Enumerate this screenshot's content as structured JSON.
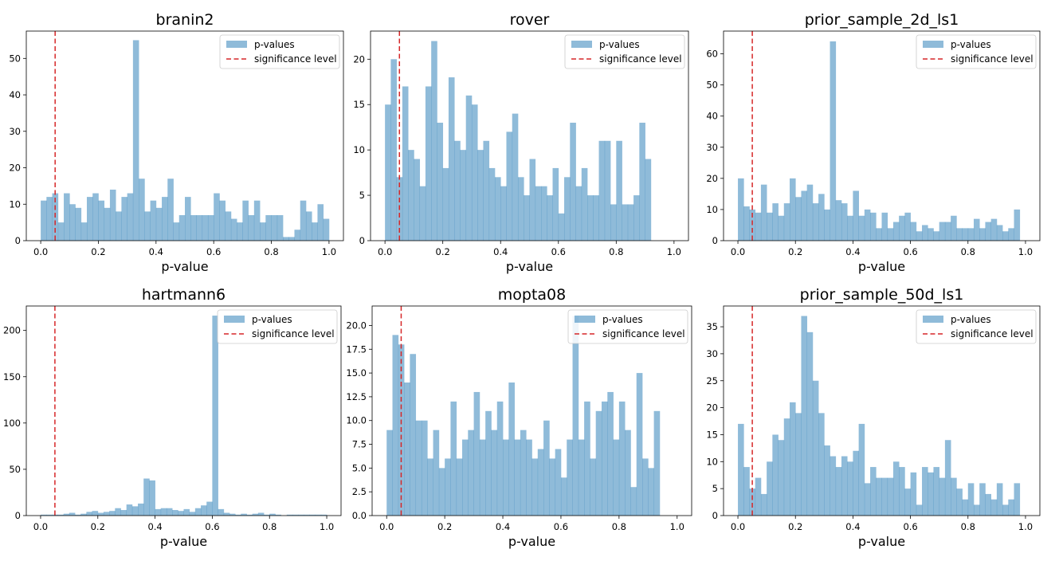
{
  "colors": {
    "bar": "#1f77b4",
    "significance": "#d62728",
    "axis": "#000000"
  },
  "chart_data": [
    {
      "type": "bar",
      "subtype": "histogram",
      "title": "branin2",
      "xlabel": "p-value",
      "ylabel": "",
      "xlim": [
        -0.05,
        1.05
      ],
      "ylim": [
        0,
        57.5
      ],
      "xticks": [
        "0.0",
        "0.2",
        "0.4",
        "0.6",
        "0.8",
        "1.0"
      ],
      "yticks": [
        "0",
        "10",
        "20",
        "30",
        "40",
        "50"
      ],
      "bin_width": 0.02,
      "bin_start": 0.0,
      "values": [
        11,
        12,
        13,
        5,
        13,
        10,
        9,
        5,
        12,
        13,
        11,
        9,
        14,
        8,
        12,
        13,
        55,
        17,
        8,
        11,
        9,
        12,
        17,
        5,
        7,
        12,
        7,
        7,
        7,
        7,
        13,
        11,
        8,
        6,
        5,
        11,
        7,
        11,
        5,
        7,
        7,
        7,
        1,
        1,
        3,
        11,
        8,
        5,
        10,
        6
      ],
      "significance_level": 0.05,
      "legend": {
        "position": "upper right",
        "entries": [
          "p-values",
          "significance level"
        ]
      }
    },
    {
      "type": "bar",
      "subtype": "histogram",
      "title": "rover",
      "xlabel": "p-value",
      "ylabel": "",
      "xlim": [
        -0.05,
        1.05
      ],
      "ylim": [
        0,
        23.1
      ],
      "xticks": [
        "0.0",
        "0.2",
        "0.4",
        "0.6",
        "0.8",
        "1.0"
      ],
      "yticks": [
        "0",
        "5",
        "10",
        "15",
        "20"
      ],
      "bin_width": 0.02,
      "bin_start": 0.0,
      "values": [
        15,
        20,
        7,
        17,
        10,
        9,
        6,
        17,
        22,
        13,
        8,
        18,
        11,
        10,
        16,
        15,
        10,
        11,
        8,
        7,
        6,
        12,
        14,
        7,
        5,
        9,
        6,
        6,
        5,
        8,
        3,
        7,
        13,
        6,
        8,
        5,
        5,
        11,
        11,
        4,
        11,
        4,
        4,
        5,
        13,
        9
      ],
      "significance_level": 0.05,
      "legend": {
        "position": "upper right",
        "entries": [
          "p-values",
          "significance level"
        ]
      }
    },
    {
      "type": "bar",
      "subtype": "histogram",
      "title": "prior_sample_2d_ls1",
      "xlabel": "p-value",
      "ylabel": "",
      "xlim": [
        -0.05,
        1.05
      ],
      "ylim": [
        0,
        67.3
      ],
      "xticks": [
        "0.0",
        "0.2",
        "0.4",
        "0.6",
        "0.8",
        "1.0"
      ],
      "yticks": [
        "0",
        "10",
        "20",
        "30",
        "40",
        "50",
        "60"
      ],
      "bin_width": 0.02,
      "bin_start": 0.0,
      "values": [
        20,
        11,
        10,
        9,
        18,
        9,
        12,
        8,
        12,
        20,
        14,
        16,
        18,
        12,
        15,
        10,
        64,
        13,
        12,
        8,
        16,
        8,
        10,
        9,
        4,
        9,
        4,
        6,
        8,
        9,
        6,
        3,
        5,
        4,
        3,
        6,
        6,
        8,
        4,
        4,
        4,
        7,
        4,
        6,
        7,
        5,
        3,
        4,
        10
      ],
      "significance_level": 0.05,
      "legend": {
        "position": "upper right",
        "entries": [
          "p-values",
          "significance level"
        ]
      }
    },
    {
      "type": "bar",
      "subtype": "histogram",
      "title": "hartmann6",
      "xlabel": "p-value",
      "ylabel": "",
      "xlim": [
        -0.05,
        1.05
      ],
      "ylim": [
        0,
        226.4
      ],
      "xticks": [
        "0.0",
        "0.2",
        "0.4",
        "0.6",
        "0.8",
        "1.0"
      ],
      "yticks": [
        "0",
        "50",
        "100",
        "150",
        "200"
      ],
      "bin_width": 0.02,
      "bin_start": 0.0,
      "values": [
        1,
        1,
        1,
        1,
        2,
        3,
        1,
        2,
        4,
        5,
        3,
        4,
        5,
        8,
        6,
        12,
        10,
        13,
        40,
        38,
        7,
        8,
        8,
        6,
        5,
        7,
        4,
        8,
        11,
        15,
        216,
        7,
        3,
        2,
        1,
        2,
        1,
        2,
        3,
        1,
        2,
        1,
        0,
        1,
        1,
        1,
        1,
        1,
        1,
        1
      ],
      "significance_level": 0.05,
      "legend": {
        "position": "upper right",
        "entries": [
          "p-values",
          "significance level"
        ]
      }
    },
    {
      "type": "bar",
      "subtype": "histogram",
      "title": "mopta08",
      "xlabel": "p-value",
      "ylabel": "",
      "xlim": [
        -0.05,
        1.05
      ],
      "ylim": [
        0,
        22.05
      ],
      "xticks": [
        "0.0",
        "0.2",
        "0.4",
        "0.6",
        "0.8",
        "1.0"
      ],
      "yticks": [
        "0.0",
        "2.5",
        "5.0",
        "7.5",
        "10.0",
        "12.5",
        "15.0",
        "17.5",
        "20.0"
      ],
      "bin_width": 0.02,
      "bin_start": 0.0,
      "values": [
        9,
        19,
        18,
        14,
        17,
        10,
        10,
        6,
        9,
        5,
        6,
        12,
        6,
        8,
        9,
        13,
        8,
        11,
        9,
        12,
        8,
        14,
        8,
        9,
        8,
        6,
        7,
        10,
        6,
        7,
        4,
        8,
        21,
        8,
        12,
        6,
        11,
        12,
        13,
        8,
        12,
        9,
        3,
        15,
        6,
        5,
        11
      ],
      "significance_level": 0.05,
      "legend": {
        "position": "upper right",
        "entries": [
          "p-values",
          "significance level"
        ]
      }
    },
    {
      "type": "bar",
      "subtype": "histogram",
      "title": "prior_sample_50d_ls1",
      "xlabel": "p-value",
      "ylabel": "",
      "xlim": [
        -0.05,
        1.05
      ],
      "ylim": [
        0,
        38.85
      ],
      "xticks": [
        "0.0",
        "0.2",
        "0.4",
        "0.6",
        "0.8",
        "1.0"
      ],
      "yticks": [
        "0",
        "5",
        "10",
        "15",
        "20",
        "25",
        "30",
        "35"
      ],
      "bin_width": 0.02,
      "bin_start": 0.0,
      "values": [
        17,
        9,
        5,
        7,
        4,
        10,
        15,
        14,
        18,
        21,
        19,
        37,
        34,
        25,
        19,
        13,
        11,
        9,
        11,
        10,
        12,
        17,
        6,
        9,
        7,
        7,
        7,
        10,
        9,
        5,
        8,
        2,
        9,
        8,
        9,
        7,
        14,
        7,
        5,
        3,
        6,
        2,
        6,
        4,
        3,
        6,
        2,
        3,
        6
      ],
      "significance_level": 0.05,
      "legend": {
        "position": "upper right",
        "entries": [
          "p-values",
          "significance level"
        ]
      }
    }
  ]
}
